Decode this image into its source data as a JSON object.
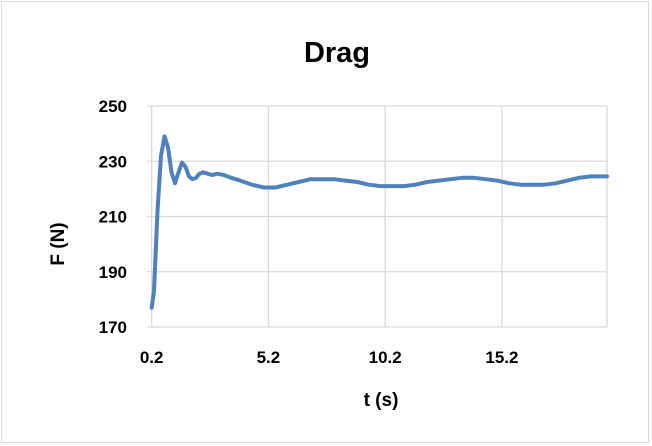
{
  "chart_data": {
    "type": "line",
    "title": "Drag",
    "xlabel": "t (s)",
    "ylabel": "F (N)",
    "xlim": [
      0,
      19.7
    ],
    "ylim": [
      170,
      250
    ],
    "x_ticks": [
      0.2,
      5.2,
      10.2,
      15.2
    ],
    "x_tick_labels": [
      "0.2",
      "5.2",
      "10.2",
      "15.2"
    ],
    "y_ticks": [
      170,
      190,
      210,
      230,
      250
    ],
    "y_tick_labels": [
      "170",
      "190",
      "210",
      "230",
      "250"
    ],
    "grid": true,
    "legend": "none",
    "series": [
      {
        "color": "#4f81bd",
        "x": [
          0.2,
          0.3,
          0.45,
          0.6,
          0.75,
          0.9,
          1.05,
          1.2,
          1.35,
          1.5,
          1.65,
          1.8,
          1.95,
          2.1,
          2.25,
          2.4,
          2.6,
          2.8,
          3.0,
          3.3,
          3.6,
          4.0,
          4.5,
          5.0,
          5.5,
          6.0,
          6.5,
          7.0,
          7.5,
          8.0,
          8.5,
          9.0,
          9.5,
          10.0,
          10.5,
          11.0,
          11.5,
          12.0,
          12.5,
          13.0,
          13.5,
          14.0,
          14.5,
          15.0,
          15.5,
          16.0,
          16.5,
          17.0,
          17.5,
          18.0,
          18.5,
          19.0,
          19.5,
          19.7
        ],
        "y": [
          177,
          183,
          212,
          232,
          239,
          235,
          226,
          222,
          226,
          229.5,
          228,
          224.5,
          223.5,
          224,
          225.5,
          226,
          225.5,
          225,
          225.5,
          225,
          224,
          223,
          221.5,
          220.5,
          220.5,
          221.5,
          222.5,
          223.5,
          223.5,
          223.5,
          223,
          222.5,
          221.5,
          221,
          221,
          221,
          221.5,
          222.5,
          223,
          223.5,
          224,
          224,
          223.5,
          223,
          222,
          221.5,
          221.5,
          221.5,
          222,
          223,
          224,
          224.5,
          224.5,
          224.5
        ]
      }
    ]
  }
}
